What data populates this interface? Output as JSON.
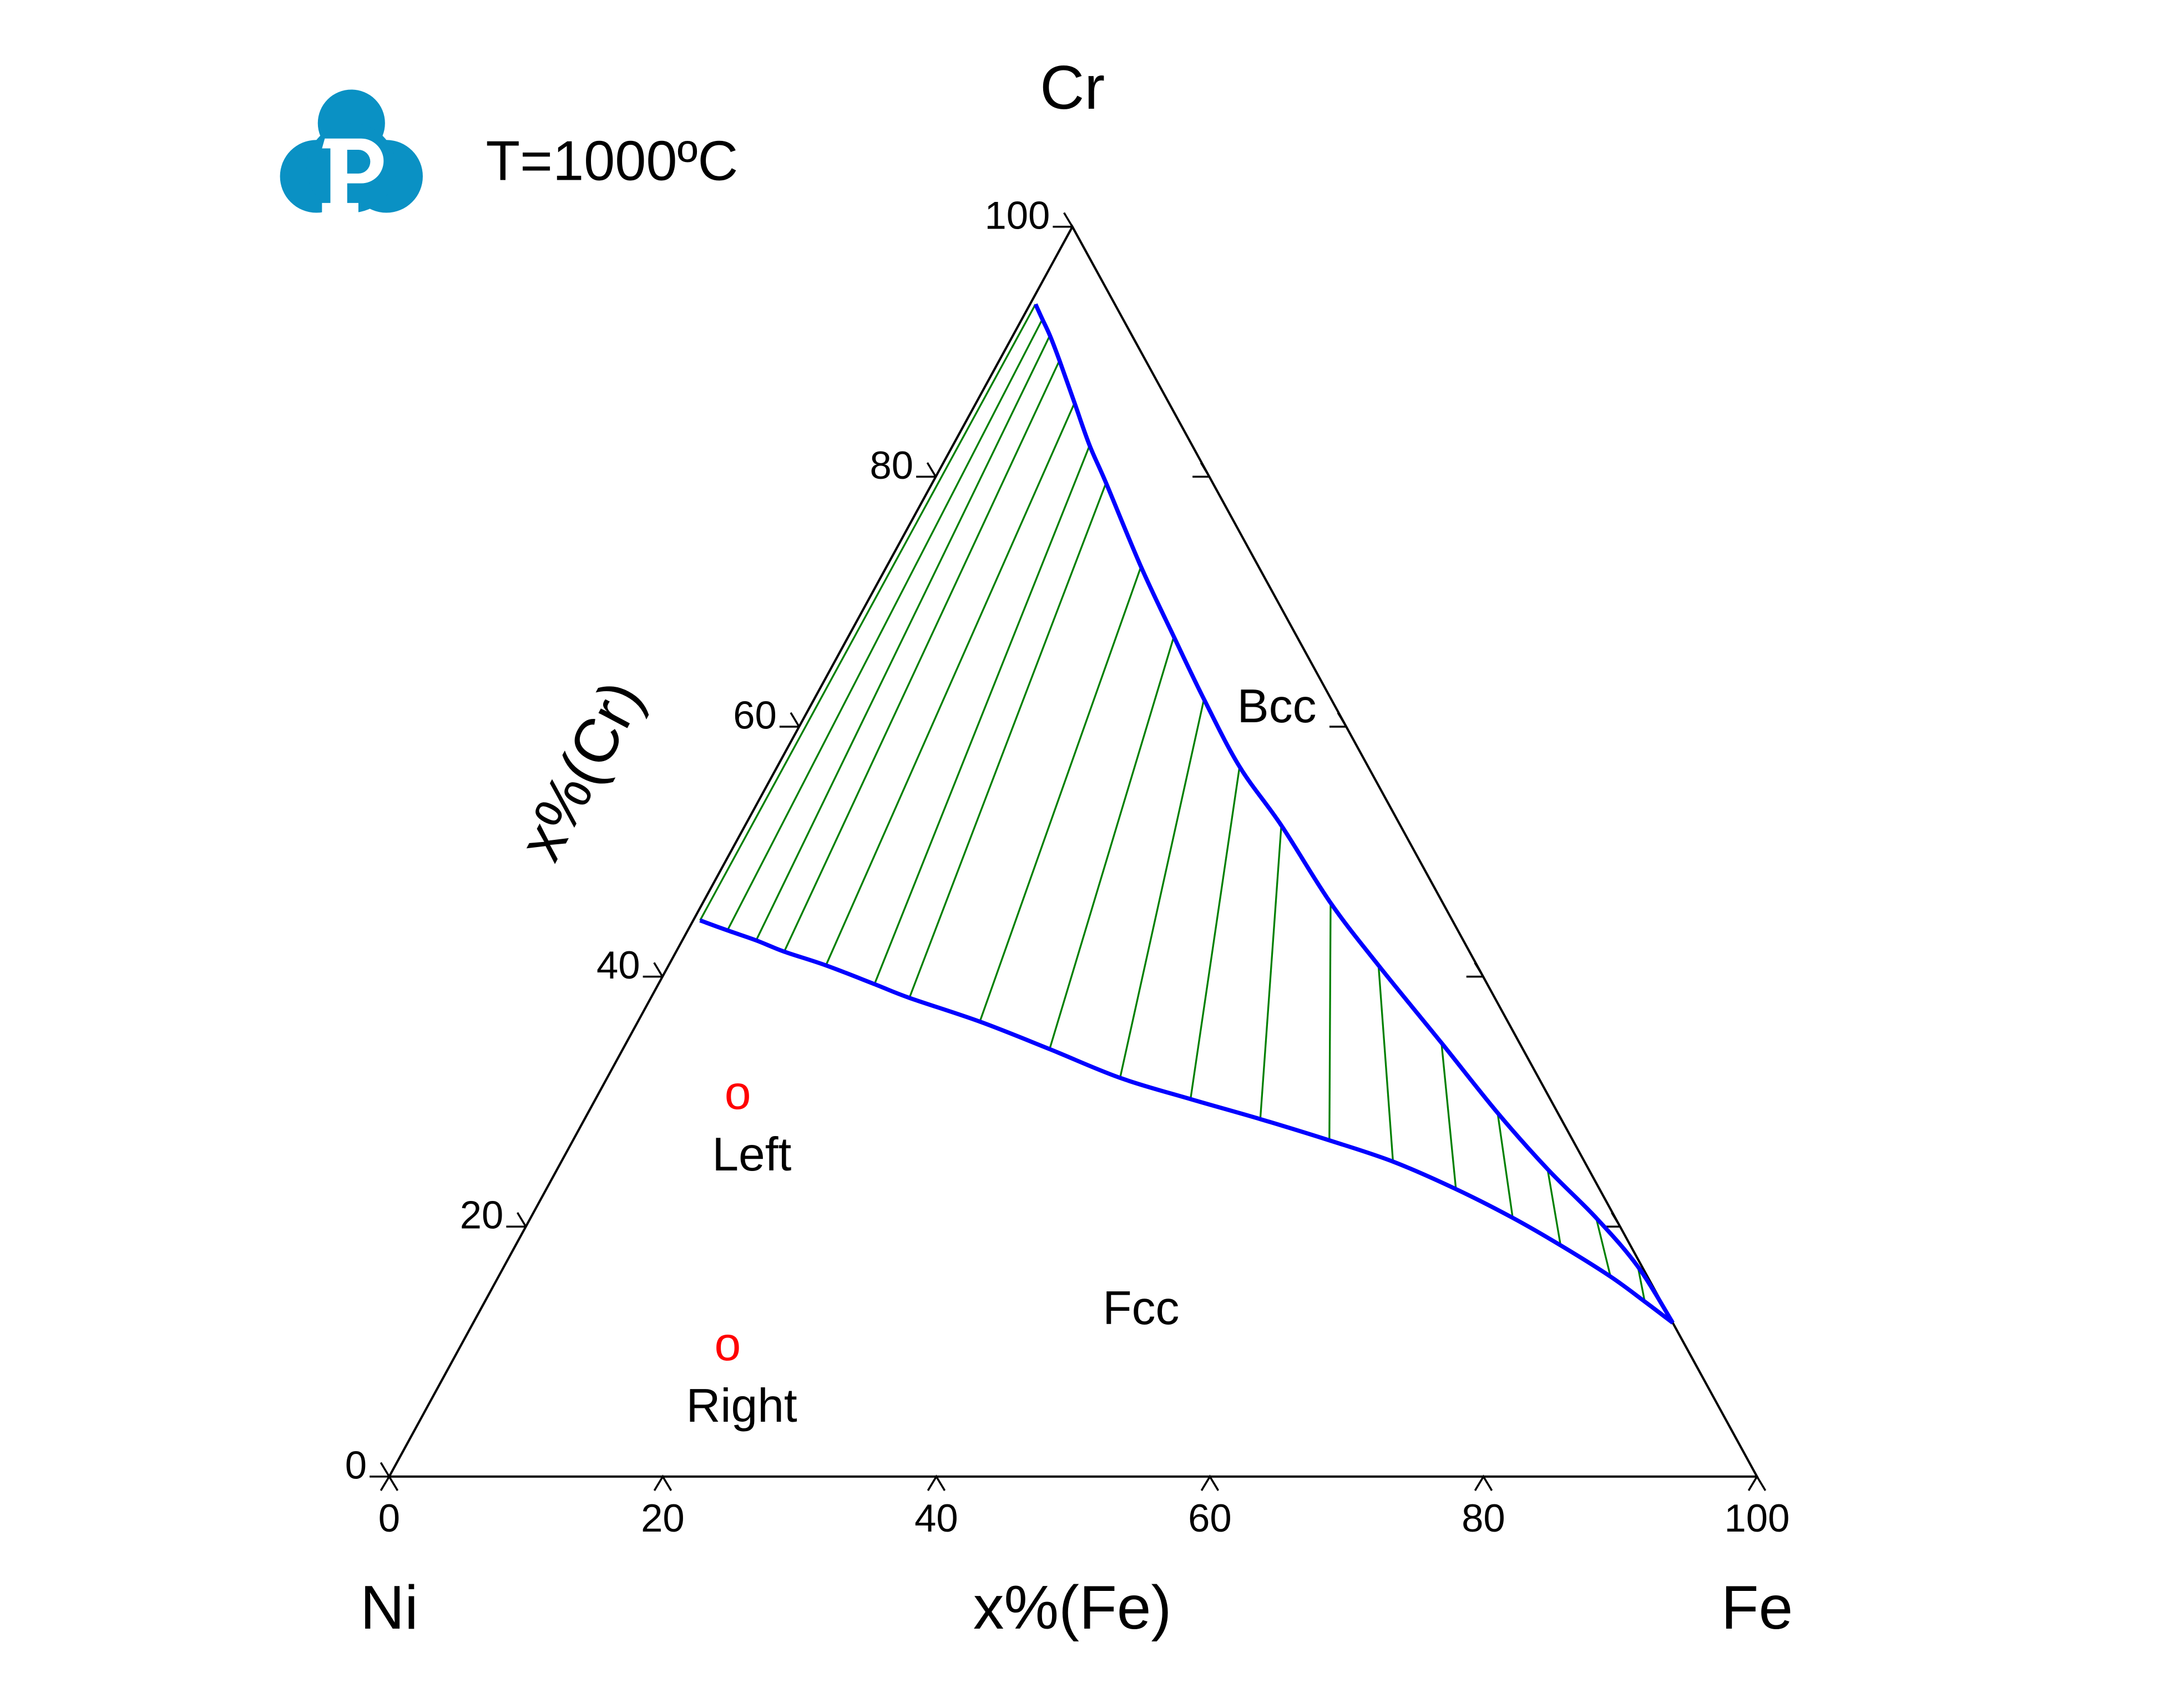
{
  "chart_data": {
    "type": "ternary",
    "title": "T=1000ºC",
    "vertices": {
      "left": "Ni",
      "right": "Fe",
      "top": "Cr"
    },
    "xlabel": "x%(Fe)",
    "ylabel": "x%(Cr)",
    "xlim": [
      0,
      100
    ],
    "ylim": [
      0,
      100
    ],
    "xticks": [
      0,
      20,
      40,
      60,
      80,
      100
    ],
    "yticks": [
      0,
      20,
      40,
      60,
      80,
      100
    ],
    "rticks": [
      20,
      40,
      60,
      80
    ],
    "tie_line_color": "#008000",
    "series": [
      {
        "name": "Fcc",
        "color": "#0000ff",
        "fe": [
          0.5,
          2.9,
          5.4,
          7.9,
          11.5,
          15.8,
          18.9,
          25.0,
          31.2,
          37.5,
          43.5,
          49.4,
          55.3,
          60.8,
          66.5,
          71.8,
          76.4,
          81.3,
          84.8,
          87.7
        ],
        "cr": [
          44.5,
          43.7,
          42.9,
          42.0,
          40.9,
          39.4,
          38.3,
          36.4,
          34.2,
          31.9,
          30.2,
          28.6,
          26.9,
          25.2,
          23.0,
          20.7,
          18.5,
          16.0,
          14.0,
          12.3
        ]
      },
      {
        "name": "Bcc",
        "color": "#0000ff",
        "fe": [
          0.4,
          1.5,
          2.7,
          4.4,
          7.2,
          10.0,
          12.7,
          18.6,
          23.8,
          28.5,
          33.8,
          39.2,
          45.9,
          51.9,
          59.6,
          66.5,
          72.4,
          77.9,
          82.9,
          87.7
        ],
        "cr": [
          93.8,
          92.6,
          91.3,
          89.3,
          85.9,
          82.5,
          79.5,
          72.8,
          67.2,
          62.2,
          56.8,
          52.1,
          45.9,
          40.9,
          34.7,
          29.1,
          24.6,
          20.7,
          16.8,
          12.3
        ]
      }
    ],
    "points": [
      {
        "name": "Left",
        "marker": "o",
        "color": "#ff0000",
        "fe": 10.4,
        "cr": 30.2
      },
      {
        "name": "Right",
        "marker": "o",
        "color": "#ff0000",
        "fe": 19.7,
        "cr": 10.1
      }
    ]
  }
}
